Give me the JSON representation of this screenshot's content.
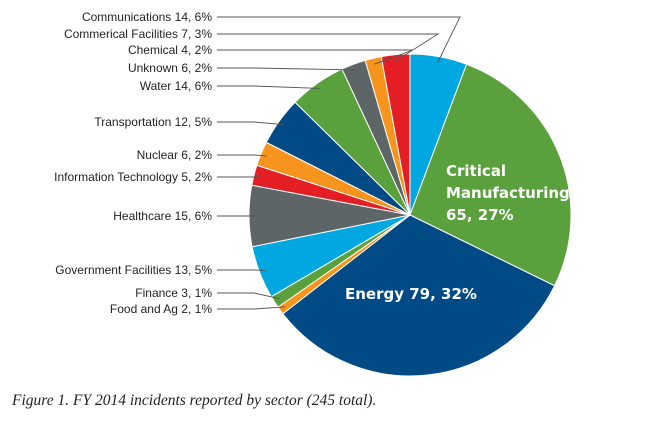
{
  "chart_data": {
    "type": "pie",
    "title": "",
    "total": 245,
    "slices": [
      {
        "label": "Communications 14, 6%",
        "value": 14,
        "color": "#00a7e1"
      },
      {
        "label": "Critical Manufacturing 65, 27%",
        "value": 65,
        "color": "#5aa03c"
      },
      {
        "label": "Energy 79, 32%",
        "value": 79,
        "color": "#004a86"
      },
      {
        "label": "Food and Ag 2, 1%",
        "value": 2,
        "color": "#f7941d"
      },
      {
        "label": "Finance 3, 1%",
        "value": 3,
        "color": "#5aa03c"
      },
      {
        "label": "Government Facilities 13, 5%",
        "value": 13,
        "color": "#00a7e1"
      },
      {
        "label": "Healthcare 15, 6%",
        "value": 15,
        "color": "#5d6566"
      },
      {
        "label": "Information Technology 5, 2%",
        "value": 5,
        "color": "#e31e24"
      },
      {
        "label": "Nuclear 6, 2%",
        "value": 6,
        "color": "#f7941d"
      },
      {
        "label": "Transportation 12, 5%",
        "value": 12,
        "color": "#004a86"
      },
      {
        "label": "Water 14, 6%",
        "value": 14,
        "color": "#5aa03c"
      },
      {
        "label": "Unknown 6, 2%",
        "value": 6,
        "color": "#5d6566"
      },
      {
        "label": "Chemical 4, 2%",
        "value": 4,
        "color": "#f7941d"
      },
      {
        "label": "Commerical Facilities 7, 3%",
        "value": 7,
        "color": "#e31e24"
      }
    ],
    "inner_labels": {
      "critical_manufacturing": [
        "Critical",
        "Manufacturing",
        "65, 27%"
      ],
      "energy": "Energy 79, 32%"
    }
  },
  "caption": "Figure 1. FY 2014 incidents reported by sector (245 total)."
}
